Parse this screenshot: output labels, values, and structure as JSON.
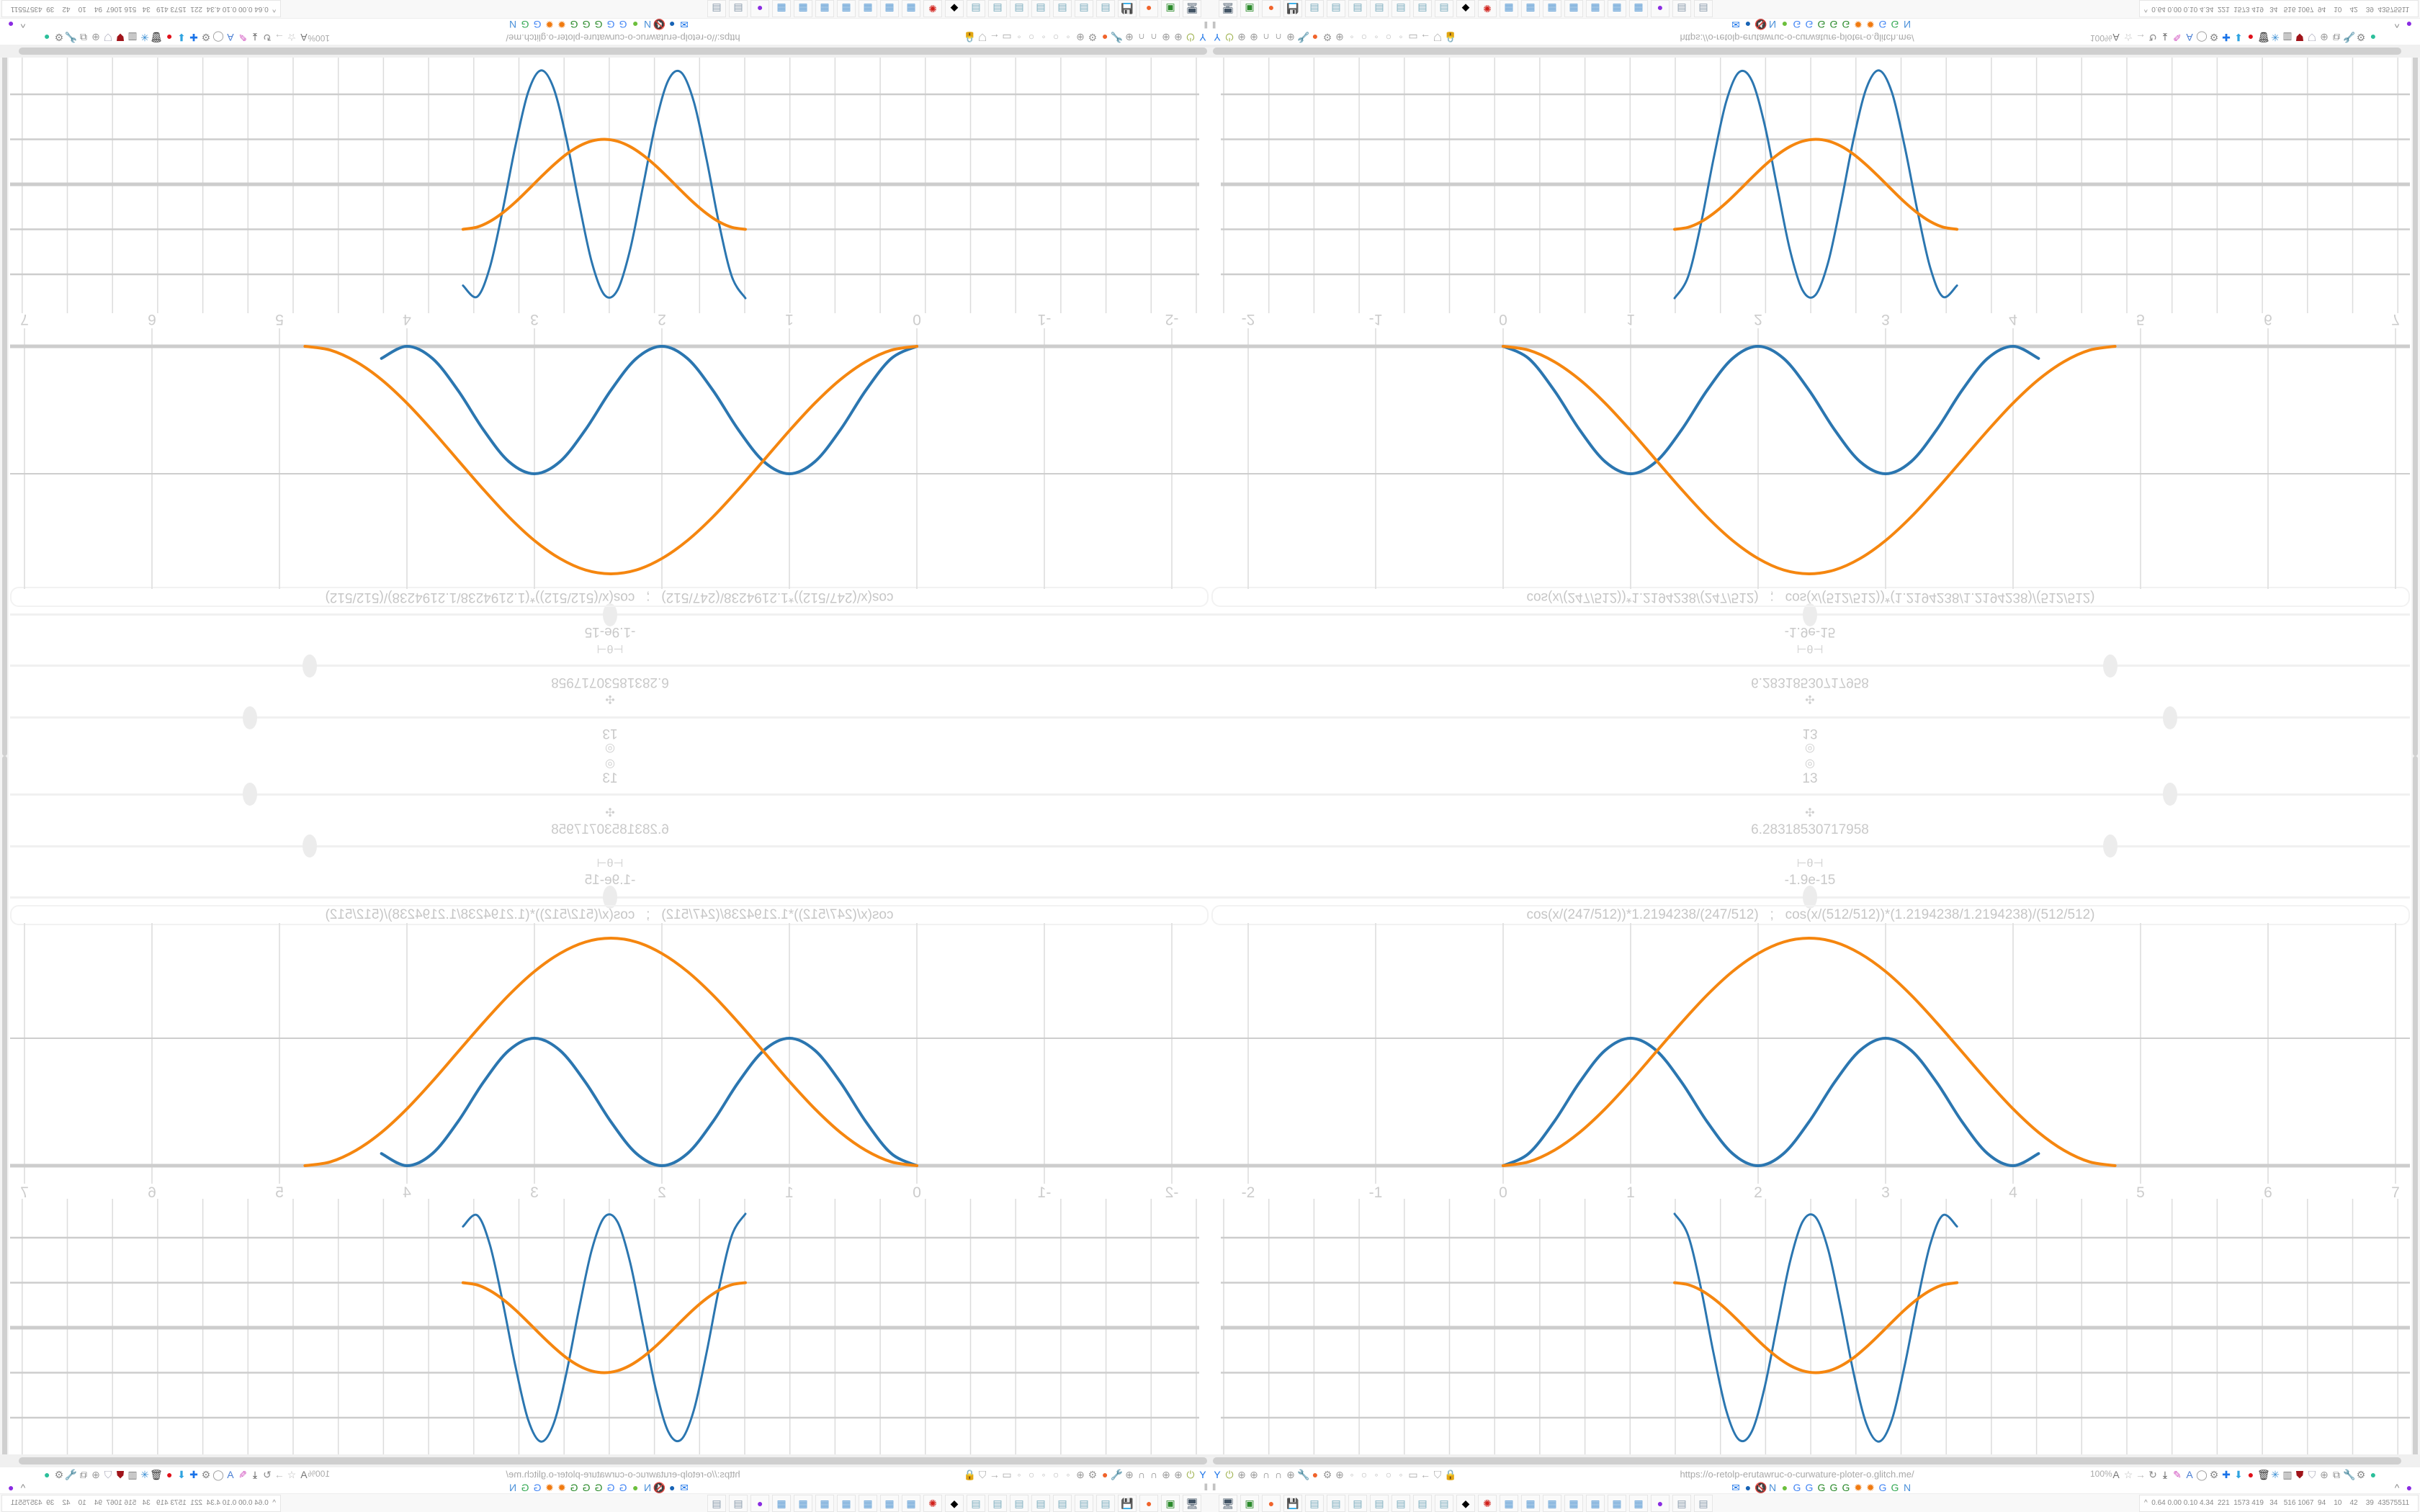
{
  "controls": {
    "top_icon": "◎",
    "param1": {
      "icon": "target-icon",
      "glyph": "◎",
      "value": "13",
      "slider_fraction": 0.8
    },
    "param2": {
      "icon": "move-icon",
      "glyph": "✣",
      "value": "6.28318530717958",
      "slider_fraction": 0.75
    },
    "param3": {
      "icon": "theta-icon",
      "glyph": "⊢θ⊣",
      "value": "-1.9e-15",
      "slider_fraction": 0.5
    },
    "formula": "cos(x/(247/512))*1.2194238/(247/512)   ;   cos(x/(512/512))*(1.2194238/1.2194238)/(512/512)"
  },
  "colors": {
    "series_blue": "#2b76b0",
    "series_orange": "#f5860f",
    "grid": "#dcdcdc",
    "axis": "#cdcdcd",
    "label": "#cccccc"
  },
  "chart_data": [
    {
      "type": "line",
      "xlim": [
        -2.3,
        7.3
      ],
      "ylim": [
        -0.2,
        1.9
      ],
      "x_ticks": [
        "-2",
        "-1",
        "0",
        "1",
        "2",
        "3",
        "4",
        "5",
        "6",
        "7"
      ],
      "grid": true,
      "series": [
        {
          "color": "#2b76b0",
          "x": [
            0,
            0.2,
            0.4,
            0.6,
            0.8,
            1.0,
            1.2,
            1.4,
            1.6,
            1.8,
            2.0,
            2.2,
            2.4,
            2.6,
            2.8,
            3.0,
            3.2,
            3.4,
            3.6,
            3.8,
            4.0,
            4.2
          ],
          "y": [
            0,
            0.095,
            0.345,
            0.655,
            0.905,
            1,
            0.905,
            0.655,
            0.345,
            0.095,
            0,
            0.095,
            0.345,
            0.655,
            0.905,
            1,
            0.905,
            0.655,
            0.345,
            0.095,
            0,
            0.095
          ]
        },
        {
          "color": "#f5860f",
          "x": [
            0,
            0.2,
            0.4,
            0.6,
            0.8,
            1.0,
            1.2,
            1.4,
            1.6,
            1.8,
            2.0,
            2.2,
            2.4,
            2.6,
            2.8,
            3.0,
            3.2,
            3.4,
            3.6,
            3.8,
            4.0,
            4.2,
            4.4,
            4.6,
            4.8
          ],
          "y": [
            0,
            0.03,
            0.12,
            0.261,
            0.446,
            0.662,
            0.893,
            1.123,
            1.339,
            1.524,
            1.665,
            1.755,
            1.785,
            1.755,
            1.665,
            1.524,
            1.339,
            1.123,
            0.893,
            0.662,
            0.446,
            0.261,
            0.12,
            0.03,
            0
          ]
        }
      ]
    },
    {
      "type": "line",
      "xlim": [
        -2.3,
        7.3
      ],
      "ylim": [
        -2.82,
        2.86
      ],
      "grid": true,
      "series": [
        {
          "color": "#2b76b0",
          "x": [
            1.345,
            1.45,
            1.55,
            1.65,
            1.75,
            1.85,
            1.95,
            2.05,
            2.15,
            2.25,
            2.35,
            2.45,
            2.55,
            2.65,
            2.75,
            2.85,
            2.95,
            3.05,
            3.15,
            3.25,
            3.35,
            3.45,
            3.56
          ],
          "y": [
            2.53,
            2.06,
            0.9,
            -0.56,
            -1.84,
            -2.49,
            -2.31,
            -1.34,
            0.07,
            1.46,
            2.36,
            2.46,
            1.73,
            0.42,
            -1.02,
            -2.14,
            -2.53,
            -2.04,
            -0.84,
            0.59,
            1.85,
            2.5,
            2.25
          ]
        },
        {
          "color": "#f5860f",
          "x": [
            1.345,
            1.45,
            1.55,
            1.65,
            1.75,
            1.85,
            1.95,
            2.05,
            2.15,
            2.25,
            2.35,
            2.45,
            2.55,
            2.65,
            2.75,
            2.85,
            2.95,
            3.05,
            3.15,
            3.25,
            3.35,
            3.45,
            3.56
          ],
          "y": [
            1,
            0.956,
            0.836,
            0.648,
            0.41,
            0.138,
            -0.145,
            -0.416,
            -0.653,
            -0.839,
            -0.958,
            -1,
            -0.963,
            -0.848,
            -0.666,
            -0.428,
            -0.159,
            0.123,
            0.397,
            0.636,
            0.826,
            0.951,
            1
          ]
        }
      ]
    }
  ],
  "browser": {
    "url": "https://o-retolp-erutawruc-o-curwature-ploter-o.glitch.me/",
    "zoom": "100%",
    "left_icons": [
      {
        "name": "filter",
        "g": "Y",
        "c": "#1a73e8"
      },
      {
        "name": "power",
        "g": "⏻",
        "c": "#9cb04a"
      },
      {
        "name": "globe",
        "g": "⊕",
        "c": "#999"
      },
      {
        "name": "globe",
        "g": "⊕",
        "c": "#999"
      },
      {
        "name": "headphones",
        "g": "∩",
        "c": "#888"
      },
      {
        "name": "headphones",
        "g": "∩",
        "c": "#888"
      },
      {
        "name": "globe",
        "g": "⊕",
        "c": "#999"
      },
      {
        "name": "wrench",
        "g": "🔧",
        "c": "#888"
      },
      {
        "name": "firefox",
        "g": "●",
        "c": "#f0632b"
      },
      {
        "name": "gear",
        "g": "⚙",
        "c": "#999"
      },
      {
        "name": "globe",
        "g": "⊕",
        "c": "#999"
      },
      {
        "name": "dot",
        "g": "◦",
        "c": "#bbb"
      },
      {
        "name": "circle",
        "g": "○",
        "c": "#bbb"
      },
      {
        "name": "dot",
        "g": "◦",
        "c": "#bbb"
      },
      {
        "name": "circle",
        "g": "○",
        "c": "#bbb"
      },
      {
        "name": "dot",
        "g": "◦",
        "c": "#bbb"
      },
      {
        "name": "folder",
        "g": "▭",
        "c": "#aaa"
      },
      {
        "name": "back-arrow",
        "g": "←",
        "c": "#aaa"
      },
      {
        "name": "shield",
        "g": "⛉",
        "c": "#aaa"
      },
      {
        "name": "lock",
        "g": "🔒",
        "c": "#aaa"
      }
    ],
    "right_icons": [
      {
        "name": "translate",
        "g": "A",
        "c": "#777"
      },
      {
        "name": "star",
        "g": "☆",
        "c": "#bbb"
      },
      {
        "name": "forward-arrow",
        "g": "→",
        "c": "#bbb"
      },
      {
        "name": "reload",
        "g": "↻",
        "c": "#888"
      },
      {
        "name": "download",
        "g": "⤓",
        "c": "#333"
      },
      {
        "name": "pencil",
        "g": "✎",
        "c": "#d04fbf"
      },
      {
        "name": "translate-blue",
        "g": "A",
        "c": "#4a7fd4"
      },
      {
        "name": "mouse",
        "g": "◯",
        "c": "#999"
      },
      {
        "name": "gear",
        "g": "⚙",
        "c": "#888"
      },
      {
        "name": "plus",
        "g": "✚",
        "c": "#1a73e8"
      },
      {
        "name": "arrow-down",
        "g": "⬇",
        "c": "#2ea3e0"
      },
      {
        "name": "red-circle",
        "g": "●",
        "c": "#e0101a"
      },
      {
        "name": "trash",
        "g": "🗑",
        "c": "#333"
      },
      {
        "name": "share",
        "g": "✳",
        "c": "#3c8fd4"
      },
      {
        "name": "book",
        "g": "▥",
        "c": "#777"
      },
      {
        "name": "ublock",
        "g": "⛊",
        "c": "#a0141a"
      },
      {
        "name": "shield",
        "g": "⛉",
        "c": "#aab"
      },
      {
        "name": "globe",
        "g": "⊕",
        "c": "#999"
      },
      {
        "name": "puzzle",
        "g": "⧉",
        "c": "#888"
      },
      {
        "name": "wrench",
        "g": "🔧",
        "c": "#888"
      },
      {
        "name": "gear",
        "g": "⚙",
        "c": "#888"
      },
      {
        "name": "status-dot",
        "g": "●",
        "c": "#2bbf9a"
      }
    ],
    "bookmarks": [
      {
        "name": "mail",
        "g": "✉",
        "c": "#1a73e8"
      },
      {
        "name": "blue-bird",
        "g": "●",
        "c": "#1763b5"
      },
      {
        "name": "mute",
        "g": "🔇",
        "c": "#aaa"
      },
      {
        "name": "notion",
        "g": "N",
        "c": "#4a90d9"
      },
      {
        "name": "green-feather",
        "g": "●",
        "c": "#6cbf3c"
      },
      {
        "name": "google",
        "g": "G",
        "c": "#4285f4"
      },
      {
        "name": "google",
        "g": "G",
        "c": "#4285f4"
      },
      {
        "name": "google-green",
        "g": "G",
        "c": "#2a8a2a"
      },
      {
        "name": "google-green",
        "g": "G",
        "c": "#2a8a2a"
      },
      {
        "name": "google-green",
        "g": "G",
        "c": "#2a8a2a"
      },
      {
        "name": "orange-sun",
        "g": "✹",
        "c": "#f07a10"
      },
      {
        "name": "orange-sun",
        "g": "✹",
        "c": "#f07a10"
      },
      {
        "name": "google",
        "g": "G",
        "c": "#4285f4"
      },
      {
        "name": "google",
        "g": "G",
        "c": "#34a853"
      },
      {
        "name": "notion",
        "g": "N",
        "c": "#4a90d9"
      }
    ],
    "bookmarks_left": "‖",
    "bookmarks_right": [
      {
        "name": "chevron-up",
        "g": "^",
        "c": "#888"
      },
      {
        "name": "mask",
        "g": "●",
        "c": "#8a2be2"
      }
    ]
  },
  "taskbar": {
    "apps": [
      {
        "name": "system-settings",
        "g": "🖥",
        "c": "#456"
      },
      {
        "name": "terminal",
        "g": "▣",
        "c": "#2a8a2a"
      },
      {
        "name": "firefox",
        "g": "●",
        "c": "#f0632b"
      },
      {
        "name": "floppy-64",
        "g": "💾",
        "c": "#225"
      },
      {
        "name": "notepad",
        "g": "▤",
        "c": "#7ab"
      },
      {
        "name": "notepad",
        "g": "▤",
        "c": "#7ab"
      },
      {
        "name": "notepad",
        "g": "▤",
        "c": "#7ab"
      },
      {
        "name": "notepad",
        "g": "▤",
        "c": "#7ab"
      },
      {
        "name": "notepad",
        "g": "▤",
        "c": "#7ab"
      },
      {
        "name": "notepad",
        "g": "▤",
        "c": "#7ab"
      },
      {
        "name": "notepad",
        "g": "▤",
        "c": "#7ab"
      },
      {
        "name": "inkscape",
        "g": "◆",
        "c": "#000"
      },
      {
        "name": "red-app",
        "g": "✺",
        "c": "#d0201a"
      },
      {
        "name": "calculator",
        "g": "▦",
        "c": "#5a9bd4"
      },
      {
        "name": "calculator",
        "g": "▦",
        "c": "#5a9bd4"
      },
      {
        "name": "calculator",
        "g": "▦",
        "c": "#5a9bd4"
      },
      {
        "name": "calculator",
        "g": "▦",
        "c": "#5a9bd4"
      },
      {
        "name": "calculator",
        "g": "▦",
        "c": "#5a9bd4"
      },
      {
        "name": "calculator",
        "g": "▦",
        "c": "#5a9bd4"
      },
      {
        "name": "calculator",
        "g": "▦",
        "c": "#5a9bd4"
      },
      {
        "name": "mask-app",
        "g": "●",
        "c": "#8a2be2"
      },
      {
        "name": "scroll",
        "g": "▤",
        "c": "#8899aa"
      },
      {
        "name": "scroll",
        "g": "▤",
        "c": "#8899aa"
      }
    ],
    "tray_text": "^  0.64 0.00 0.10 4.34  221  1573 419   34   516 1067  94    10    42    39  43575511"
  }
}
